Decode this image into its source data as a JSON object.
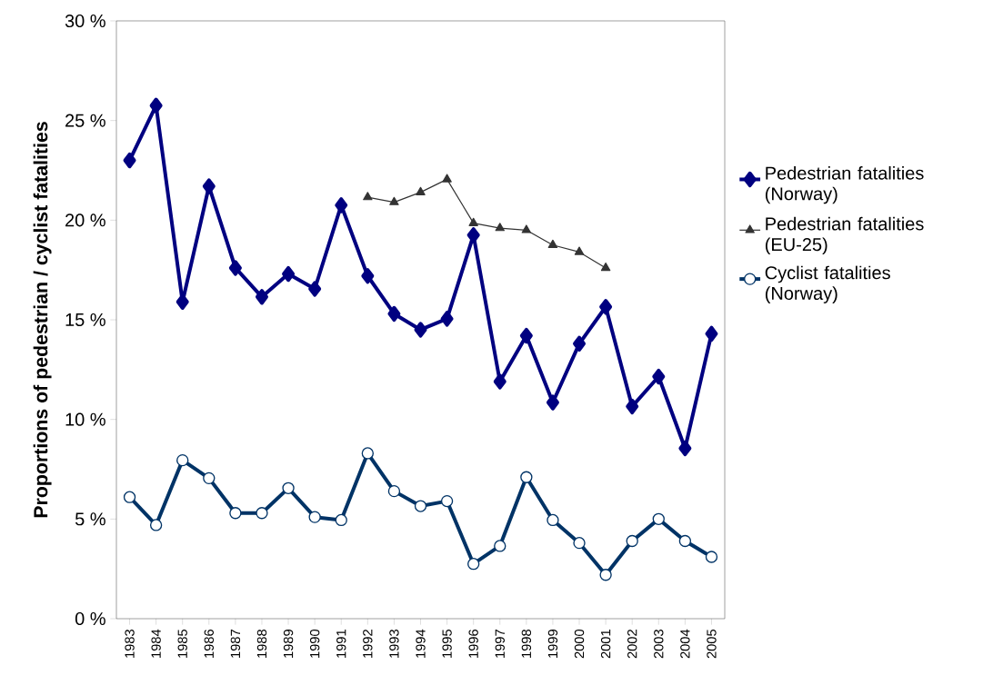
{
  "chart_data": {
    "type": "line",
    "ylabel": "Proportions of pedestrian / cyclist fatalities",
    "categories": [
      "1983",
      "1984",
      "1985",
      "1986",
      "1987",
      "1988",
      "1989",
      "1990",
      "1991",
      "1992",
      "1993",
      "1994",
      "1995",
      "1996",
      "1997",
      "1998",
      "1999",
      "2000",
      "2001",
      "2002",
      "2003",
      "2004",
      "2005"
    ],
    "ylim": [
      0,
      30
    ],
    "yticks": [
      {
        "value": 0,
        "label": "0 %"
      },
      {
        "value": 5,
        "label": "5 %"
      },
      {
        "value": 10,
        "label": "10 %"
      },
      {
        "value": 15,
        "label": "15 %"
      },
      {
        "value": 20,
        "label": "20 %"
      },
      {
        "value": 25,
        "label": "25 %"
      },
      {
        "value": 30,
        "label": "30 %"
      }
    ],
    "grid": false,
    "legend": "right",
    "series": [
      {
        "name": "Pedestrian fatalities (Norway)",
        "color": "#000080",
        "marker": "diamond",
        "values": [
          23.0,
          25.75,
          15.9,
          21.7,
          17.6,
          16.15,
          17.3,
          16.55,
          20.75,
          17.2,
          15.3,
          14.5,
          15.05,
          19.25,
          11.9,
          14.2,
          10.85,
          13.8,
          15.65,
          10.65,
          12.15,
          8.55,
          14.3
        ]
      },
      {
        "name": "Pedestrian fatalities (EU-25)",
        "color": "#333333",
        "marker": "triangle",
        "values": [
          null,
          null,
          null,
          null,
          null,
          null,
          null,
          null,
          null,
          21.15,
          20.9,
          21.4,
          22.05,
          19.85,
          19.6,
          19.5,
          18.75,
          18.4,
          17.6,
          null,
          null,
          null,
          null
        ]
      },
      {
        "name": "Cyclist fatalities (Norway)",
        "color": "#003366",
        "marker": "circle",
        "values": [
          6.1,
          4.7,
          7.95,
          7.05,
          5.3,
          5.3,
          6.55,
          5.1,
          4.95,
          8.3,
          6.4,
          5.65,
          5.9,
          2.75,
          3.65,
          7.1,
          4.95,
          3.8,
          2.2,
          3.9,
          5.0,
          3.9,
          3.1
        ]
      }
    ]
  }
}
